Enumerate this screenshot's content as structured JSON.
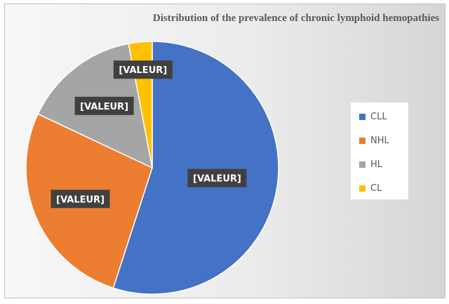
{
  "chart_data": {
    "type": "pie",
    "title": "Distribution of the prevalence of chronic lymphoid hemopathies",
    "categories": [
      "CLL",
      "NHL",
      "HL",
      "CL"
    ],
    "values": [
      55,
      27,
      15,
      3
    ],
    "value_unit": "percent of total (estimated from slice angles)",
    "colors": [
      "#4472C4",
      "#ED7D31",
      "#A5A5A5",
      "#FFC000"
    ],
    "data_labels": [
      "[VALEUR]",
      "[VALEUR]",
      "[VALEUR]",
      "[VALEUR]"
    ],
    "legend_position": "right",
    "start_angle": "top",
    "direction": "clockwise"
  }
}
